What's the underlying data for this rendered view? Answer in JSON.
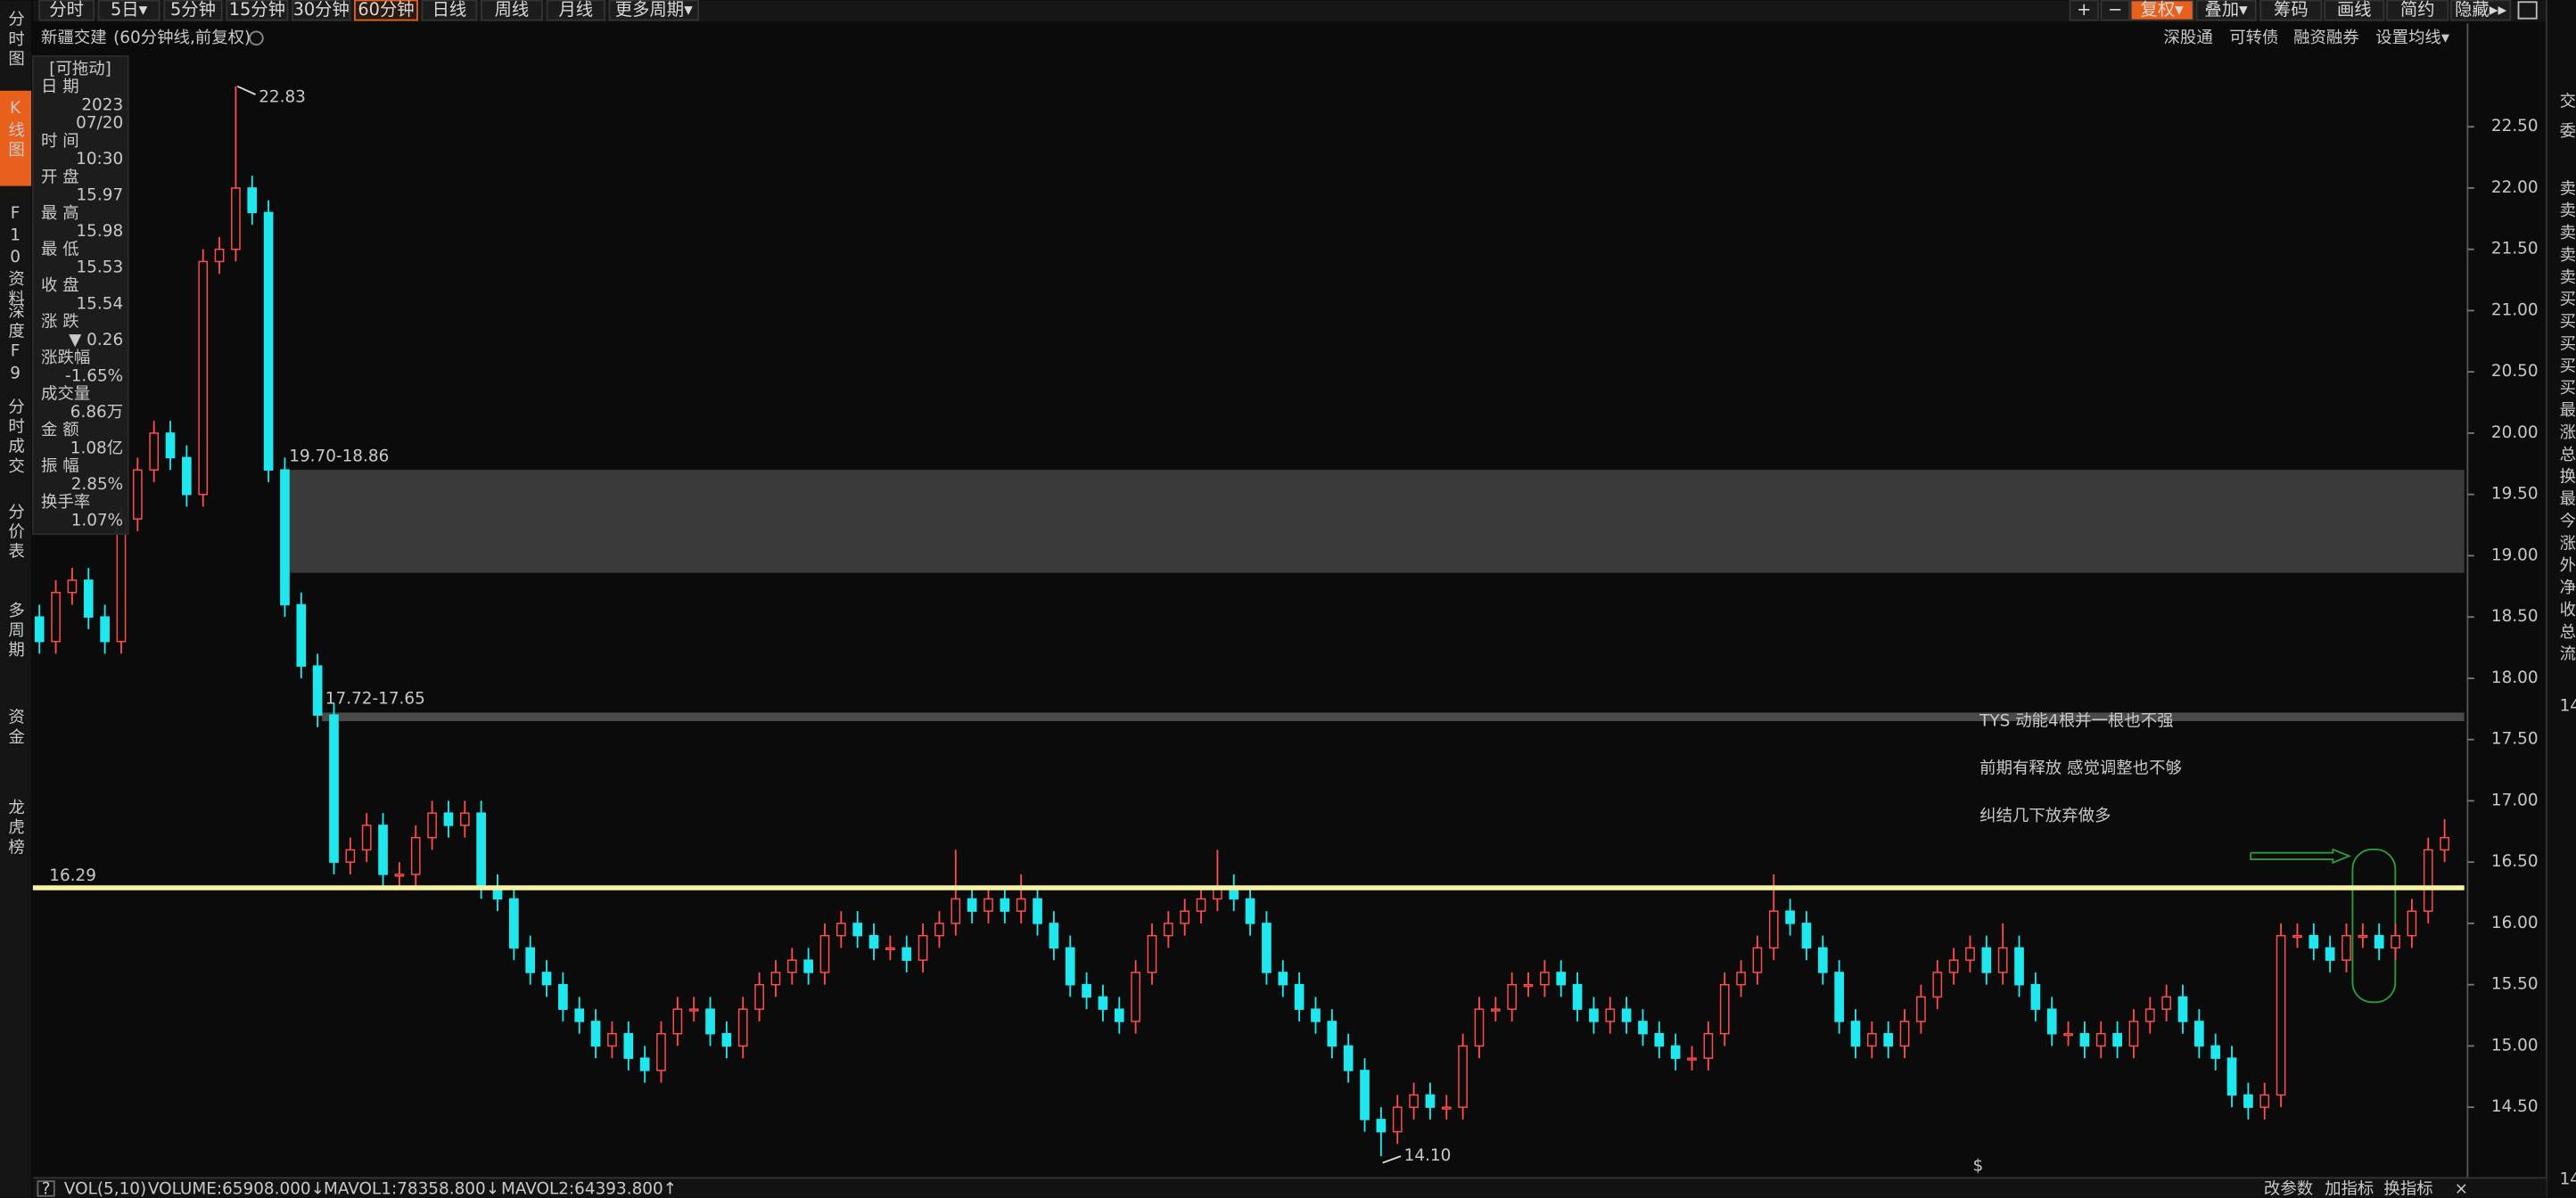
{
  "toolbar": {
    "left_tabs": [
      "分时",
      "5日▾",
      "5分钟",
      "15分钟",
      "30分钟",
      "60分钟",
      "日线",
      "周线",
      "月线",
      "更多周期▾"
    ],
    "active_tab": "60分钟",
    "right_buttons": [
      "+",
      "−",
      "复权▾",
      "叠加▾",
      "筹码",
      "画线",
      "简约",
      "隐藏▸▸"
    ]
  },
  "header": {
    "stock_name": "新疆交建",
    "period": "(60分钟线,前复权)",
    "links": [
      "深股通",
      "可转债",
      "融资融券",
      "设置均线▾"
    ]
  },
  "sidebar": [
    "分时图",
    "K线图",
    "F10资料",
    "深度F9",
    "分时成交",
    "分价表",
    "多周期",
    "资金",
    "龙虎榜"
  ],
  "info_panel": {
    "drag_hint": "[可拖动]",
    "rows": [
      {
        "label": "日 期",
        "values": [
          "2023",
          "07/20"
        ],
        "color": "#d0d0d0"
      },
      {
        "label": "时 间",
        "values": [
          "10:30"
        ],
        "color": "#d0d0d0"
      },
      {
        "label": "开 盘",
        "values": [
          "15.97"
        ],
        "color": "#ff4c4c"
      },
      {
        "label": "最 高",
        "values": [
          "15.98"
        ],
        "color": "#ff4c4c"
      },
      {
        "label": "最 低",
        "values": [
          "15.53"
        ],
        "color": "#2ee05a"
      },
      {
        "label": "收 盘",
        "values": [
          "15.54"
        ],
        "color": "#2ee05a"
      },
      {
        "label": "涨 跌",
        "values": [
          "▼ 0.26"
        ],
        "color": "#2ee05a"
      },
      {
        "label": "涨跌幅",
        "values": [
          "-1.65%"
        ],
        "color": "#2ee05a"
      },
      {
        "label": "成交量",
        "values": [
          "6.86万"
        ],
        "color": "#d0d0d0"
      },
      {
        "label": "金 额",
        "values": [
          "1.08亿"
        ],
        "color": "#3fd8ff"
      },
      {
        "label": "振 幅",
        "values": [
          "2.85%"
        ],
        "color": "#d0d0d0"
      },
      {
        "label": "换手率",
        "values": [
          "1.07%"
        ],
        "color": "#d0d0d0"
      }
    ]
  },
  "chart_data": {
    "type": "candlestick",
    "up_color": "#ff4c4c",
    "down_color": "#1ee8ee",
    "ylim": [
      13.95,
      23.33
    ],
    "yticks": [
      {
        "value": 14.5,
        "label": "14.50"
      },
      {
        "value": 15,
        "label": "15.00"
      },
      {
        "value": 15.5,
        "label": "15.50"
      },
      {
        "value": 16,
        "label": "16.00"
      },
      {
        "value": 16.5,
        "label": "16.50"
      },
      {
        "value": 17,
        "label": "17.00"
      },
      {
        "value": 17.5,
        "label": "17.50"
      },
      {
        "value": 18,
        "label": "18.00"
      },
      {
        "value": 18.5,
        "label": "18.50"
      },
      {
        "value": 19,
        "label": "19.00"
      },
      {
        "value": 19.5,
        "label": "19.50"
      },
      {
        "value": 20,
        "label": "20.00"
      },
      {
        "value": 20.5,
        "label": "20.50"
      },
      {
        "value": 21,
        "label": "21.00"
      },
      {
        "value": 21.5,
        "label": "21.50"
      },
      {
        "value": 22,
        "label": "22.00"
      },
      {
        "value": 22.5,
        "label": "22.50"
      }
    ],
    "open": [
      18.5,
      18.3,
      18.7,
      18.8,
      18.5,
      18.3,
      19.3,
      19.7,
      20.0,
      19.8,
      19.5,
      21.4,
      21.5,
      22.0,
      21.8,
      19.7,
      18.6,
      18.1,
      17.7,
      16.5,
      16.6,
      16.8,
      16.4,
      16.4,
      16.7,
      16.9,
      16.8,
      16.9,
      16.3,
      16.2,
      15.8,
      15.6,
      15.5,
      15.3,
      15.2,
      15.0,
      15.1,
      14.9,
      14.8,
      15.1,
      15.3,
      15.3,
      15.1,
      15.0,
      15.3,
      15.5,
      15.6,
      15.7,
      15.6,
      15.9,
      16.0,
      15.9,
      15.8,
      15.8,
      15.7,
      15.9,
      16.0,
      16.2,
      16.1,
      16.2,
      16.1,
      16.2,
      16.0,
      15.8,
      15.5,
      15.4,
      15.3,
      15.2,
      15.6,
      15.9,
      16.0,
      16.1,
      16.2,
      16.3,
      16.2,
      16.0,
      15.6,
      15.5,
      15.3,
      15.2,
      15.0,
      14.8,
      14.4,
      14.3,
      14.5,
      14.6,
      14.5,
      14.5,
      15.0,
      15.3,
      15.3,
      15.5,
      15.5,
      15.6,
      15.5,
      15.3,
      15.2,
      15.3,
      15.2,
      15.1,
      15.0,
      14.9,
      14.9,
      15.1,
      15.5,
      15.6,
      15.8,
      16.1,
      16.0,
      15.8,
      15.6,
      15.2,
      15.0,
      15.1,
      15.0,
      15.2,
      15.4,
      15.6,
      15.7,
      15.8,
      15.6,
      15.8,
      15.5,
      15.3,
      15.1,
      15.1,
      15.0,
      15.1,
      15.0,
      15.2,
      15.3,
      15.4,
      15.2,
      15.0,
      14.9,
      14.6,
      14.5,
      14.6,
      15.9,
      15.9,
      15.8,
      15.7,
      15.9,
      15.9,
      15.8,
      15.9,
      16.1,
      16.6
    ],
    "high": [
      18.6,
      18.8,
      18.9,
      18.9,
      18.6,
      19.4,
      19.8,
      20.1,
      20.1,
      19.9,
      21.5,
      21.6,
      22.83,
      22.1,
      21.9,
      19.8,
      18.7,
      18.2,
      17.8,
      16.7,
      16.9,
      16.9,
      16.5,
      16.8,
      17.0,
      17.0,
      17.0,
      17.0,
      16.4,
      16.3,
      15.9,
      15.7,
      15.6,
      15.4,
      15.3,
      15.2,
      15.2,
      15.0,
      15.2,
      15.4,
      15.4,
      15.4,
      15.2,
      15.4,
      15.6,
      15.7,
      15.8,
      15.8,
      16.0,
      16.1,
      16.1,
      16.0,
      15.9,
      15.9,
      16.0,
      16.1,
      16.6,
      16.3,
      16.3,
      16.3,
      16.4,
      16.3,
      16.1,
      15.9,
      15.6,
      15.5,
      15.4,
      15.7,
      16.0,
      16.1,
      16.2,
      16.3,
      16.6,
      16.4,
      16.3,
      16.1,
      15.7,
      15.6,
      15.4,
      15.3,
      15.1,
      14.9,
      14.5,
      14.6,
      14.7,
      14.7,
      14.6,
      15.1,
      15.4,
      15.4,
      15.6,
      15.6,
      15.7,
      15.7,
      15.6,
      15.4,
      15.4,
      15.4,
      15.3,
      15.2,
      15.1,
      15.0,
      15.2,
      15.6,
      15.7,
      15.9,
      16.4,
      16.2,
      16.1,
      15.9,
      15.7,
      15.3,
      15.2,
      15.2,
      15.3,
      15.5,
      15.7,
      15.8,
      15.9,
      15.9,
      16.0,
      15.9,
      15.6,
      15.4,
      15.2,
      15.2,
      15.2,
      15.2,
      15.3,
      15.4,
      15.5,
      15.5,
      15.3,
      15.1,
      15.0,
      14.7,
      14.7,
      16.0,
      16.0,
      16.0,
      15.9,
      16.0,
      16.0,
      16.0,
      16.0,
      16.2,
      16.7,
      16.85
    ],
    "low": [
      18.2,
      18.2,
      18.6,
      18.4,
      18.2,
      18.2,
      19.2,
      19.6,
      19.7,
      19.4,
      19.4,
      21.3,
      21.4,
      21.7,
      19.6,
      18.5,
      18.0,
      17.6,
      16.4,
      16.4,
      16.5,
      16.3,
      16.3,
      16.3,
      16.6,
      16.7,
      16.7,
      16.2,
      16.1,
      15.7,
      15.5,
      15.4,
      15.2,
      15.1,
      14.9,
      14.9,
      14.8,
      14.7,
      14.7,
      15.0,
      15.2,
      15.0,
      14.9,
      14.9,
      15.2,
      15.4,
      15.5,
      15.5,
      15.5,
      15.8,
      15.8,
      15.7,
      15.7,
      15.6,
      15.6,
      15.8,
      15.9,
      16.0,
      16.0,
      16.0,
      16.0,
      15.9,
      15.7,
      15.4,
      15.3,
      15.2,
      15.1,
      15.1,
      15.5,
      15.8,
      15.9,
      16.0,
      16.1,
      16.1,
      15.9,
      15.5,
      15.4,
      15.2,
      15.1,
      14.9,
      14.7,
      14.3,
      14.1,
      14.2,
      14.4,
      14.4,
      14.4,
      14.4,
      14.9,
      15.2,
      15.2,
      15.4,
      15.4,
      15.4,
      15.2,
      15.1,
      15.1,
      15.1,
      15.0,
      14.9,
      14.8,
      14.8,
      14.8,
      15.0,
      15.4,
      15.5,
      15.7,
      15.9,
      15.7,
      15.5,
      15.1,
      14.9,
      14.9,
      14.9,
      14.9,
      15.1,
      15.3,
      15.5,
      15.6,
      15.5,
      15.5,
      15.4,
      15.2,
      15.0,
      15.0,
      14.9,
      14.9,
      14.9,
      14.9,
      15.1,
      15.2,
      15.1,
      14.9,
      14.8,
      14.5,
      14.4,
      14.4,
      14.5,
      15.8,
      15.7,
      15.6,
      15.6,
      15.8,
      15.7,
      15.7,
      15.8,
      16.0,
      16.5
    ],
    "close": [
      18.3,
      18.7,
      18.8,
      18.5,
      18.3,
      19.3,
      19.7,
      20.0,
      19.8,
      19.5,
      21.4,
      21.5,
      22.0,
      21.8,
      19.7,
      18.6,
      18.1,
      17.7,
      16.5,
      16.6,
      16.8,
      16.4,
      16.4,
      16.7,
      16.9,
      16.8,
      16.9,
      16.3,
      16.2,
      15.8,
      15.6,
      15.5,
      15.3,
      15.2,
      15.0,
      15.1,
      14.9,
      14.8,
      15.1,
      15.3,
      15.3,
      15.1,
      15.0,
      15.3,
      15.5,
      15.6,
      15.7,
      15.6,
      15.9,
      16.0,
      15.9,
      15.8,
      15.8,
      15.7,
      15.9,
      16.0,
      16.2,
      16.1,
      16.2,
      16.1,
      16.2,
      16.0,
      15.8,
      15.5,
      15.4,
      15.3,
      15.2,
      15.6,
      15.9,
      16.0,
      16.1,
      16.2,
      16.3,
      16.2,
      16.0,
      15.6,
      15.5,
      15.3,
      15.2,
      15.0,
      14.8,
      14.4,
      14.3,
      14.5,
      14.6,
      14.5,
      14.5,
      15.0,
      15.3,
      15.3,
      15.5,
      15.5,
      15.6,
      15.5,
      15.3,
      15.2,
      15.3,
      15.2,
      15.1,
      15.0,
      14.9,
      14.9,
      15.1,
      15.5,
      15.6,
      15.8,
      16.1,
      16.0,
      15.8,
      15.6,
      15.2,
      15.0,
      15.1,
      15.0,
      15.2,
      15.4,
      15.6,
      15.7,
      15.8,
      15.6,
      15.8,
      15.5,
      15.3,
      15.1,
      15.1,
      15.0,
      15.1,
      15.0,
      15.2,
      15.3,
      15.4,
      15.2,
      15.0,
      14.9,
      14.6,
      14.5,
      14.6,
      15.9,
      15.9,
      15.8,
      15.7,
      15.9,
      15.9,
      15.8,
      15.9,
      16.1,
      16.6,
      16.7
    ],
    "high_label": "22.83",
    "low_label": "14.10",
    "zones": [
      {
        "label": "19.70-18.86",
        "top": 19.7,
        "bottom": 18.86,
        "color": "#3a3a3a"
      },
      {
        "label": "17.72-17.65",
        "top": 17.72,
        "bottom": 17.65,
        "color": "#4a4a4a"
      }
    ],
    "level": {
      "value": 16.29,
      "label": "16.29",
      "color": "#f7f3a0"
    },
    "annotation": [
      "TYS 动能4根并一根也不强",
      "前期有释放 感觉调整也不够",
      "纠结几下放弃做多"
    ]
  },
  "bottom_bar": {
    "help": "?",
    "indicator": "VOL(5,10)",
    "volume": "VOLUME:65908.000↓",
    "mavol1": "MAVOL1:78358.800↓",
    "mavol2": "MAVOL2:64393.800↑",
    "marker": "$",
    "buttons": [
      "改参数",
      "加指标",
      "换指标",
      "×"
    ]
  },
  "right_panel": [
    "交",
    "委",
    "卖",
    "卖",
    "卖",
    "卖",
    "卖",
    "买",
    "买",
    "买",
    "买",
    "买",
    "最",
    "涨",
    "总",
    "换",
    "最",
    "今",
    "涨",
    "外",
    "净",
    "收",
    "总",
    "流",
    "14",
    "14"
  ]
}
